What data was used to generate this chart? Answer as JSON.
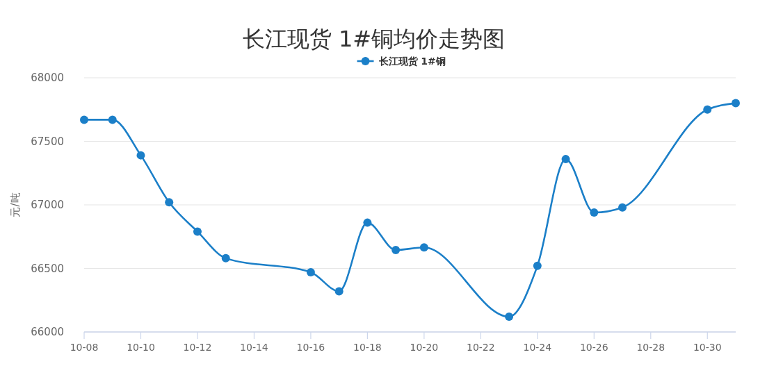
{
  "chart_data": {
    "type": "line",
    "title": "长江现货 1#铜均价走势图",
    "ylabel": "元/吨",
    "x": [
      "--10-08",
      "--10-09",
      "--10-10",
      "--10-11",
      "--10-12",
      "--10-13",
      "--10-16",
      "--10-17",
      "--10-18",
      "--10-19",
      "--10-20",
      "--10-23",
      "--10-24",
      "--10-25",
      "--10-26",
      "--10-27",
      "--10-30",
      "--10-31"
    ],
    "series": [
      {
        "name": "长江现货 1#铜",
        "color": "#1b7fc8",
        "values": [
          67670,
          67670,
          67390,
          67020,
          66790,
          66580,
          66470,
          66320,
          66860,
          66645,
          66665,
          66120,
          66520,
          67360,
          66940,
          66980,
          67750,
          67800
        ]
      }
    ],
    "xlim": [
      "--10-08",
      "--10-31"
    ],
    "xticks": [
      {
        "value": "--10-08",
        "label": "10-08"
      },
      {
        "value": "--10-10",
        "label": "10-10"
      },
      {
        "value": "--10-12",
        "label": "10-12"
      },
      {
        "value": "--10-14",
        "label": "10-14"
      },
      {
        "value": "--10-16",
        "label": "10-16"
      },
      {
        "value": "--10-18",
        "label": "10-18"
      },
      {
        "value": "--10-20",
        "label": "10-20"
      },
      {
        "value": "--10-22",
        "label": "10-22"
      },
      {
        "value": "--10-24",
        "label": "10-24"
      },
      {
        "value": "--10-26",
        "label": "10-26"
      },
      {
        "value": "--10-28",
        "label": "10-28"
      },
      {
        "value": "--10-30",
        "label": "10-30"
      }
    ],
    "ylim": [
      66000,
      68000
    ],
    "yticks": [
      66000,
      66500,
      67000,
      67500,
      68000
    ],
    "grid": "y",
    "legend": "top",
    "marker": "circle",
    "line_style": "solid"
  }
}
